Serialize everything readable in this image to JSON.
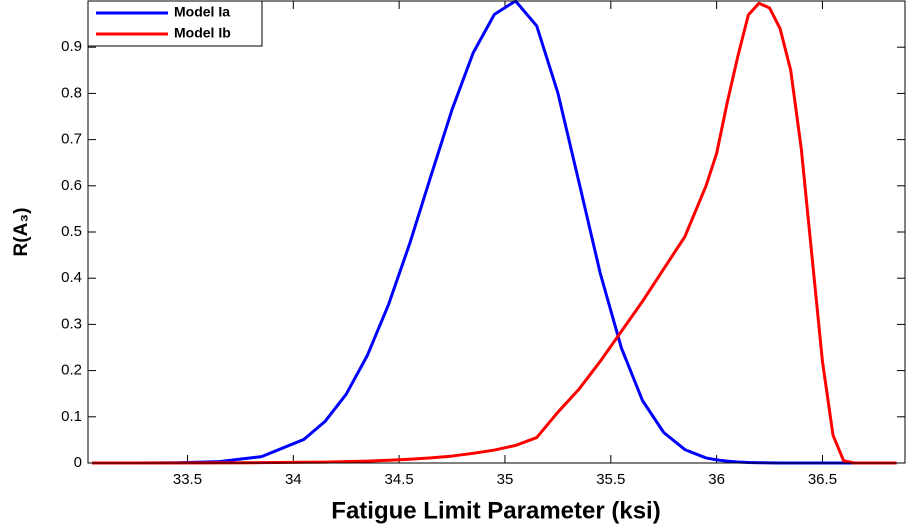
{
  "chart_data": {
    "type": "line",
    "xlabel": "Fatigue Limit Parameter (ksi)",
    "ylabel": "R(A₃)",
    "x": [
      33.05,
      33.25,
      33.45,
      33.65,
      33.85,
      34.05,
      34.15,
      34.25,
      34.35,
      34.45,
      34.55,
      34.65,
      34.75,
      34.85,
      34.95,
      35.05,
      35.15,
      35.25,
      35.35,
      35.45,
      35.55,
      35.65,
      35.75,
      35.85,
      35.95,
      36.0,
      36.05,
      36.1,
      36.15,
      36.2,
      36.25,
      36.3,
      36.35,
      36.4,
      36.45,
      36.5,
      36.55,
      36.6,
      36.65,
      36.7,
      36.85
    ],
    "series": [
      {
        "name": "Model Ia",
        "color": "#0000ff",
        "values": [
          0,
          0.0001,
          0.0005,
          0.0029,
          0.0138,
          0.051,
          0.09,
          0.149,
          0.233,
          0.343,
          0.475,
          0.621,
          0.765,
          0.888,
          0.971,
          1,
          0.946,
          0.801,
          0.607,
          0.411,
          0.249,
          0.135,
          0.066,
          0.029,
          0.011,
          0.0067,
          0.004,
          0.0022,
          0.001,
          0.0006,
          0.0003,
          0,
          0,
          0,
          0,
          0,
          0,
          0,
          0,
          0,
          0
        ]
      },
      {
        "name": "Model Ib",
        "color": "#ff0000",
        "values": [
          0,
          0,
          0.0001,
          0.0003,
          0.0007,
          0.0015,
          0.002,
          0.003,
          0.004,
          0.006,
          0.008,
          0.011,
          0.015,
          0.021,
          0.028,
          0.038,
          0.055,
          0.11,
          0.16,
          0.22,
          0.285,
          0.35,
          0.42,
          0.49,
          0.6,
          0.67,
          0.78,
          0.88,
          0.97,
          0.995,
          0.985,
          0.94,
          0.85,
          0.68,
          0.45,
          0.22,
          0.06,
          0.005,
          0,
          0,
          0
        ]
      }
    ],
    "xlim": [
      33.03,
      36.89
    ],
    "ylim": [
      0,
      1
    ],
    "xticks": [
      33.5,
      34,
      34.5,
      35,
      35.5,
      36,
      36.5
    ],
    "yticks": [
      0,
      0.1,
      0.2,
      0.3,
      0.4,
      0.5,
      0.6,
      0.7,
      0.8,
      0.9
    ],
    "legend": "upper left",
    "grid": false
  }
}
